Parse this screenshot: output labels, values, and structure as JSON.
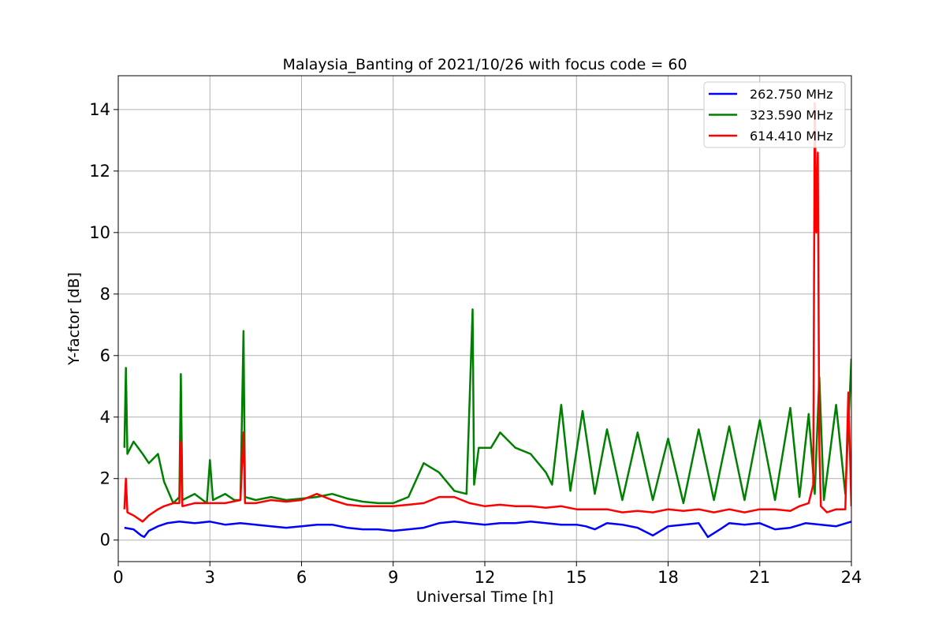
{
  "chart_data": {
    "type": "line",
    "title": "Malaysia_Banting of 2021/10/26 with focus code = 60",
    "xlabel": "Universal Time [h]",
    "ylabel": "Y-factor [dB]",
    "xlim": [
      0,
      24
    ],
    "ylim": [
      -0.7,
      15.1
    ],
    "xticks": [
      "0",
      "3",
      "6",
      "9",
      "12",
      "15",
      "18",
      "21",
      "24"
    ],
    "yticks": [
      "0",
      "2",
      "4",
      "6",
      "8",
      "10",
      "12",
      "14"
    ],
    "grid": true,
    "legend_position": "top-right",
    "series": [
      {
        "name": "262.750 MHz",
        "color": "#0000ff",
        "x": [
          0.2,
          0.5,
          0.75,
          0.85,
          1.0,
          1.3,
          1.6,
          2.0,
          2.5,
          3.0,
          3.5,
          4.0,
          4.5,
          5.0,
          5.5,
          6.0,
          6.5,
          7.0,
          7.5,
          8.0,
          8.5,
          9.0,
          9.5,
          10.0,
          10.5,
          11.0,
          11.5,
          12.0,
          12.5,
          13.0,
          13.5,
          14.0,
          14.5,
          15.0,
          15.3,
          15.6,
          16.0,
          16.5,
          17.0,
          17.5,
          18.0,
          18.5,
          19.0,
          19.3,
          19.7,
          20.0,
          20.5,
          21.0,
          21.5,
          22.0,
          22.5,
          23.0,
          23.5,
          24.0
        ],
        "values": [
          0.4,
          0.35,
          0.15,
          0.1,
          0.3,
          0.45,
          0.55,
          0.6,
          0.55,
          0.6,
          0.5,
          0.55,
          0.5,
          0.45,
          0.4,
          0.45,
          0.5,
          0.5,
          0.4,
          0.35,
          0.35,
          0.3,
          0.35,
          0.4,
          0.55,
          0.6,
          0.55,
          0.5,
          0.55,
          0.55,
          0.6,
          0.55,
          0.5,
          0.5,
          0.45,
          0.35,
          0.55,
          0.5,
          0.4,
          0.15,
          0.45,
          0.5,
          0.55,
          0.1,
          0.35,
          0.55,
          0.5,
          0.55,
          0.35,
          0.4,
          0.55,
          0.5,
          0.45,
          0.6
        ]
      },
      {
        "name": "323.590 MHz",
        "color": "#008000",
        "x": [
          0.2,
          0.25,
          0.3,
          0.5,
          0.8,
          1.0,
          1.3,
          1.5,
          1.8,
          2.0,
          2.05,
          2.1,
          2.5,
          2.9,
          3.0,
          3.1,
          3.5,
          3.8,
          4.0,
          4.1,
          4.15,
          4.5,
          5.0,
          5.5,
          6.0,
          6.5,
          7.0,
          7.5,
          8.0,
          8.5,
          9.0,
          9.5,
          10.0,
          10.5,
          11.0,
          11.4,
          11.6,
          11.65,
          11.8,
          12.2,
          12.5,
          13.0,
          13.5,
          14.0,
          14.2,
          14.5,
          14.8,
          15.2,
          15.6,
          16.0,
          16.5,
          17.0,
          17.5,
          18.0,
          18.5,
          19.0,
          19.5,
          20.0,
          20.5,
          21.0,
          21.5,
          22.0,
          22.3,
          22.6,
          22.8,
          22.95,
          23.1,
          23.5,
          23.8,
          24.0
        ],
        "values": [
          3.0,
          5.6,
          2.8,
          3.2,
          2.8,
          2.5,
          2.8,
          1.9,
          1.2,
          1.4,
          5.4,
          1.3,
          1.5,
          1.2,
          2.6,
          1.3,
          1.5,
          1.3,
          1.3,
          6.8,
          1.4,
          1.3,
          1.4,
          1.3,
          1.35,
          1.4,
          1.5,
          1.35,
          1.25,
          1.2,
          1.2,
          1.4,
          2.5,
          2.2,
          1.6,
          1.5,
          7.5,
          1.8,
          3.0,
          3.0,
          3.5,
          3.0,
          2.8,
          2.2,
          1.8,
          4.4,
          1.6,
          4.2,
          1.5,
          3.6,
          1.3,
          3.5,
          1.3,
          3.3,
          1.2,
          3.6,
          1.3,
          3.7,
          1.3,
          3.9,
          1.3,
          4.3,
          1.4,
          4.1,
          1.5,
          5.3,
          1.3,
          4.4,
          1.5,
          5.9
        ]
      },
      {
        "name": "614.410 MHz",
        "color": "#ff0000",
        "x": [
          0.2,
          0.25,
          0.3,
          0.5,
          0.8,
          1.0,
          1.3,
          1.5,
          1.8,
          2.0,
          2.05,
          2.1,
          2.5,
          3.0,
          3.5,
          4.0,
          4.1,
          4.15,
          4.5,
          5.0,
          5.5,
          6.0,
          6.5,
          7.0,
          7.5,
          8.0,
          8.5,
          9.0,
          9.5,
          10.0,
          10.5,
          11.0,
          11.5,
          12.0,
          12.5,
          13.0,
          13.5,
          14.0,
          14.5,
          15.0,
          15.5,
          16.0,
          16.5,
          17.0,
          17.5,
          18.0,
          18.5,
          19.0,
          19.5,
          20.0,
          20.5,
          21.0,
          21.5,
          22.0,
          22.3,
          22.6,
          22.75,
          22.8,
          22.85,
          22.9,
          22.95,
          23.0,
          23.2,
          23.5,
          23.8,
          23.9,
          24.0
        ],
        "values": [
          1.0,
          2.0,
          0.9,
          0.8,
          0.6,
          0.8,
          1.0,
          1.1,
          1.2,
          1.2,
          3.2,
          1.1,
          1.2,
          1.2,
          1.2,
          1.3,
          3.5,
          1.2,
          1.2,
          1.3,
          1.25,
          1.3,
          1.5,
          1.3,
          1.15,
          1.1,
          1.1,
          1.1,
          1.15,
          1.2,
          1.4,
          1.4,
          1.2,
          1.1,
          1.15,
          1.1,
          1.1,
          1.05,
          1.1,
          1.0,
          1.0,
          1.0,
          0.9,
          0.95,
          0.9,
          1.0,
          0.95,
          1.0,
          0.9,
          1.0,
          0.9,
          1.0,
          1.0,
          0.95,
          1.1,
          1.2,
          1.8,
          14.2,
          10.0,
          12.6,
          3.0,
          1.1,
          0.9,
          1.0,
          1.0,
          4.8,
          1.1
        ]
      }
    ]
  }
}
